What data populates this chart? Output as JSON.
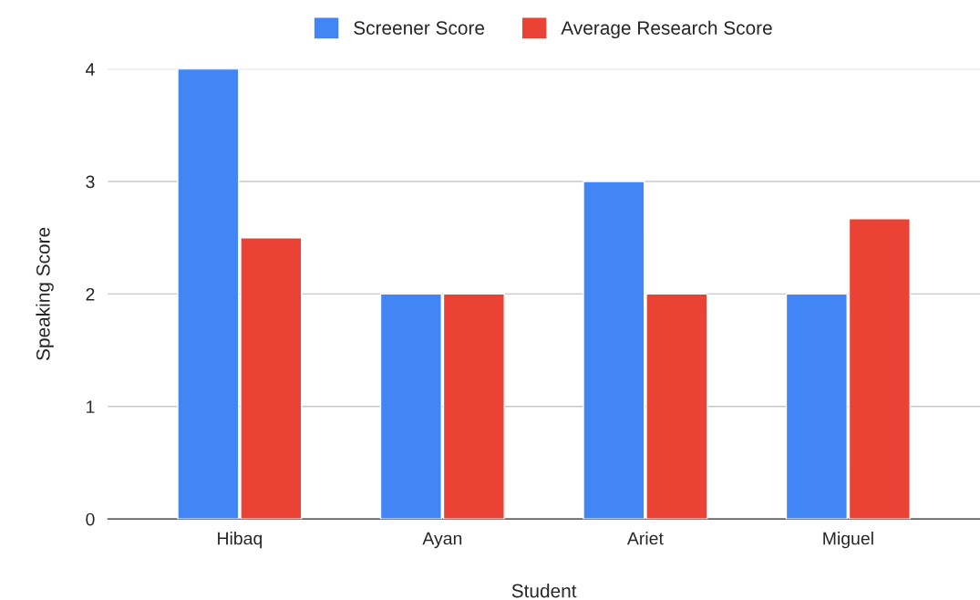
{
  "chart_data": {
    "type": "bar",
    "xlabel": "Student",
    "ylabel": "Speaking Score",
    "categories": [
      "Hibaq",
      "Ayan",
      "Ariet",
      "Miguel"
    ],
    "series": [
      {
        "name": "Screener Score",
        "color": "#4285f4",
        "values": [
          4,
          2,
          3,
          2
        ]
      },
      {
        "name": "Average Research Score",
        "color": "#ea4335",
        "values": [
          2.5,
          2,
          2,
          2.67
        ]
      }
    ],
    "ylim": [
      0,
      4
    ],
    "yticks": [
      0,
      1,
      2,
      3,
      4
    ],
    "grid": "y",
    "legend": "top"
  }
}
